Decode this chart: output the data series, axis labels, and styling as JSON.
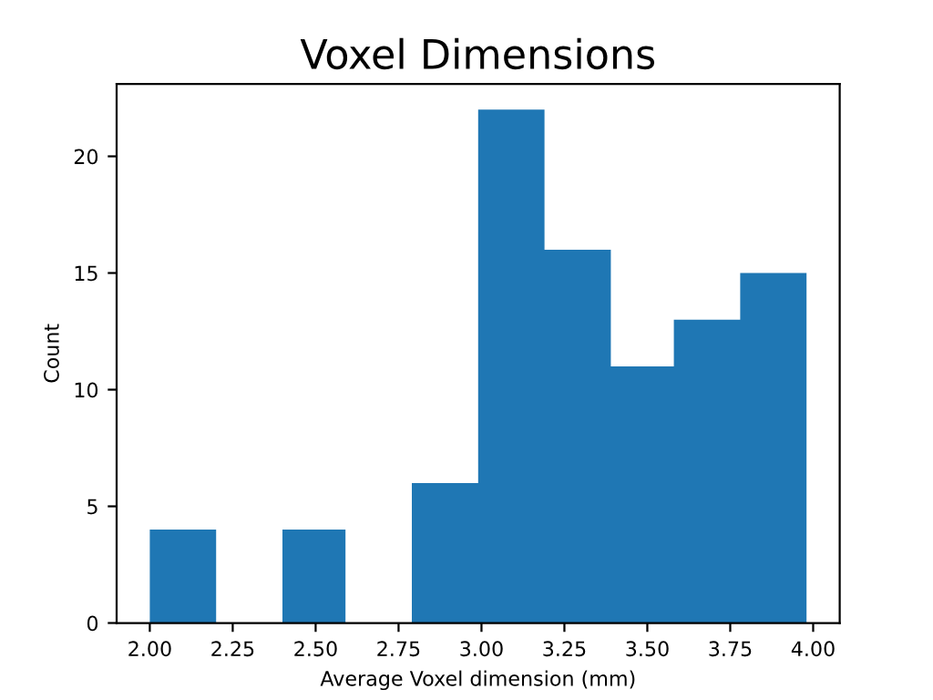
{
  "chart_data": {
    "type": "histogram",
    "title": "Voxel Dimensions",
    "xlabel": "Average Voxel dimension (mm)",
    "ylabel": "Count",
    "bins": [
      2.0,
      2.2,
      2.4,
      2.59,
      2.79,
      2.99,
      3.19,
      3.39,
      3.58,
      3.78,
      3.98
    ],
    "values": [
      4,
      0,
      4,
      0,
      6,
      22,
      16,
      11,
      13,
      15
    ],
    "color": "#1f77b4",
    "xlim": [
      1.9,
      4.08
    ],
    "ylim": [
      0,
      23.1
    ],
    "xticks": [
      {
        "value": 2.0,
        "label": "2.00"
      },
      {
        "value": 2.25,
        "label": "2.25"
      },
      {
        "value": 2.5,
        "label": "2.50"
      },
      {
        "value": 2.75,
        "label": "2.75"
      },
      {
        "value": 3.0,
        "label": "3.00"
      },
      {
        "value": 3.25,
        "label": "3.25"
      },
      {
        "value": 3.5,
        "label": "3.50"
      },
      {
        "value": 3.75,
        "label": "3.75"
      },
      {
        "value": 4.0,
        "label": "4.00"
      }
    ],
    "yticks": [
      0,
      5,
      10,
      15,
      20
    ],
    "grid": false
  }
}
